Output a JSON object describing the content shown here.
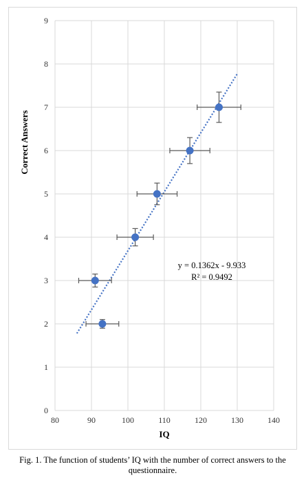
{
  "caption": "Fig. 1. The function of students’ IQ with the number of correct answers to the questionnaire.",
  "chart_data": {
    "type": "scatter",
    "title": "",
    "xlabel": "IQ",
    "ylabel": "Correct Answers",
    "xlim": [
      80,
      140
    ],
    "ylim": [
      0,
      9
    ],
    "x_ticks": [
      80,
      90,
      100,
      110,
      120,
      130,
      140
    ],
    "y_ticks": [
      0,
      1,
      2,
      3,
      4,
      5,
      6,
      7,
      8,
      9
    ],
    "grid": true,
    "legend": "none",
    "marker_color": "#4472C4",
    "trendline_color": "#4472C4",
    "errorbar_color": "#595959",
    "points": [
      {
        "x": 93,
        "y": 2,
        "x_err": 4.5,
        "y_err": 0.1
      },
      {
        "x": 91,
        "y": 3,
        "x_err": 4.5,
        "y_err": 0.15
      },
      {
        "x": 102,
        "y": 4,
        "x_err": 5,
        "y_err": 0.2
      },
      {
        "x": 108,
        "y": 5,
        "x_err": 5.5,
        "y_err": 0.25
      },
      {
        "x": 117,
        "y": 6,
        "x_err": 5.5,
        "y_err": 0.3
      },
      {
        "x": 125,
        "y": 7,
        "x_err": 6,
        "y_err": 0.35
      }
    ],
    "trendline": {
      "type": "linear",
      "slope": 0.1362,
      "intercept": -9.933,
      "x_range": [
        86,
        130
      ],
      "equation": "y = 0.1362x - 9.933",
      "r_squared": "R² = 0.9492"
    }
  }
}
